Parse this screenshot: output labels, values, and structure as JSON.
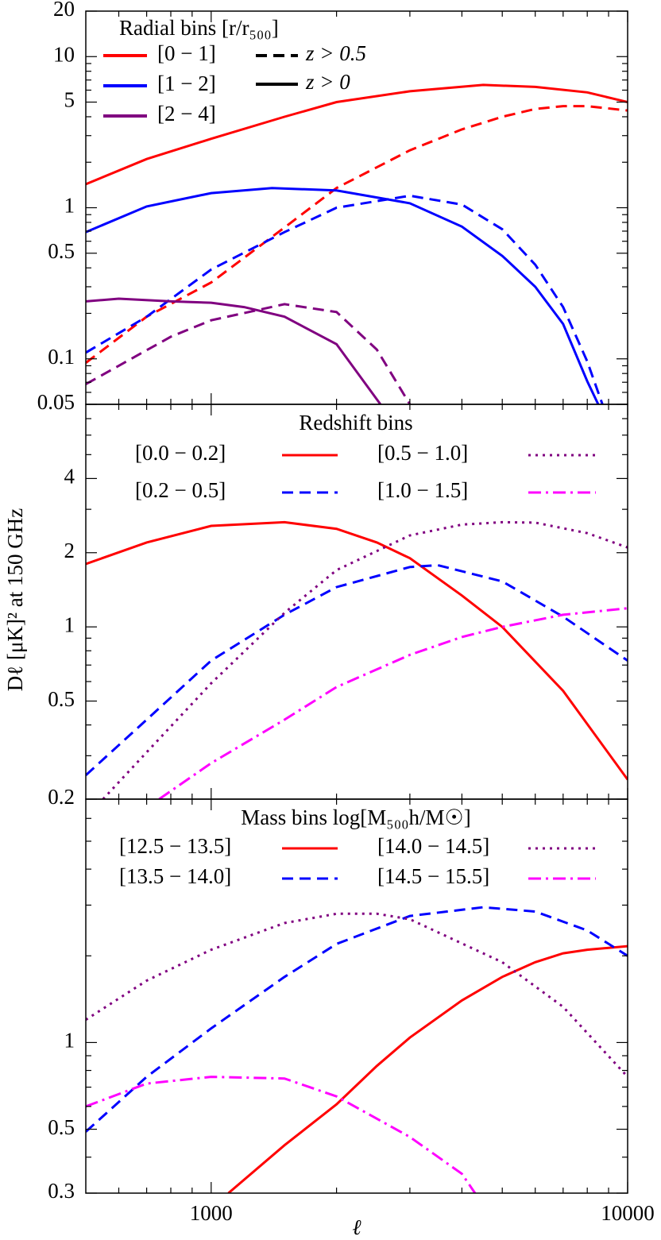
{
  "chart_data": [
    {
      "type": "line",
      "xlog": true,
      "ylog": true,
      "xlim": [
        500,
        10000
      ],
      "xticks": [
        1000,
        10000
      ],
      "xminor": [
        600,
        700,
        800,
        900,
        2000,
        3000,
        4000,
        5000,
        6000,
        7000,
        8000,
        9000
      ],
      "ylim": [
        0.05,
        20
      ],
      "yticks": [
        0.05,
        0.1,
        0.5,
        1,
        5,
        10,
        20
      ],
      "yminor": [
        0.06,
        0.07,
        0.08,
        0.09,
        0.2,
        0.3,
        0.4,
        0.6,
        0.7,
        0.8,
        0.9,
        2,
        3,
        4,
        6,
        7,
        8,
        9
      ],
      "legend": {
        "title": "Radial bins [r/r₅₀₀]",
        "entries": [
          {
            "label": "[0 − 1]",
            "color": "#ff0000"
          },
          {
            "label": "[1 − 2]",
            "color": "#0000ff"
          },
          {
            "label": "[2 − 4]",
            "color": "#800080"
          }
        ],
        "styles": [
          {
            "label": "z > 0.5",
            "dash": "dashed"
          },
          {
            "label": "z > 0",
            "dash": "solid"
          }
        ]
      },
      "series": [
        {
          "color": "#ff0000",
          "dash": "solid",
          "x": [
            500,
            700,
            1000,
            1500,
            2000,
            3000,
            4500,
            6000,
            8000,
            10000
          ],
          "values": [
            1.43,
            2.1,
            2.86,
            4.0,
            5.0,
            5.9,
            6.5,
            6.3,
            5.8,
            5.0
          ]
        },
        {
          "color": "#ff0000",
          "dash": "dashed",
          "x": [
            500,
            700,
            1000,
            1500,
            2000,
            3000,
            4000,
            5000,
            6000,
            7000,
            8000,
            10000
          ],
          "values": [
            0.094,
            0.19,
            0.32,
            0.74,
            1.35,
            2.4,
            3.3,
            4.0,
            4.5,
            4.7,
            4.7,
            4.4
          ]
        },
        {
          "color": "#0000ff",
          "dash": "solid",
          "x": [
            500,
            700,
            1000,
            1400,
            2000,
            3000,
            4000,
            5000,
            6000,
            7000,
            8000,
            8500
          ],
          "values": [
            0.69,
            1.02,
            1.25,
            1.35,
            1.3,
            1.07,
            0.75,
            0.48,
            0.3,
            0.17,
            0.071,
            0.05
          ]
        },
        {
          "color": "#0000ff",
          "dash": "dashed",
          "x": [
            500,
            700,
            1000,
            1500,
            2000,
            3000,
            4000,
            5000,
            6000,
            7000,
            8000,
            8700
          ],
          "values": [
            0.11,
            0.19,
            0.39,
            0.69,
            1.0,
            1.2,
            1.05,
            0.72,
            0.42,
            0.22,
            0.096,
            0.05
          ]
        },
        {
          "color": "#800080",
          "dash": "solid",
          "x": [
            500,
            600,
            800,
            1000,
            1200,
            1500,
            2000,
            2550
          ],
          "values": [
            0.24,
            0.25,
            0.24,
            0.235,
            0.22,
            0.19,
            0.125,
            0.05
          ]
        },
        {
          "color": "#800080",
          "dash": "dashed",
          "x": [
            500,
            800,
            1000,
            1500,
            2000,
            2500,
            3000
          ],
          "values": [
            0.068,
            0.14,
            0.18,
            0.23,
            0.204,
            0.115,
            0.05
          ]
        }
      ]
    },
    {
      "type": "line",
      "xlog": true,
      "ylog": true,
      "ylabel": "Dℓ [μK]² at 150 GHz",
      "xlim": [
        500,
        10000
      ],
      "xticks": [
        1000,
        10000
      ],
      "xminor": [
        600,
        700,
        800,
        900,
        2000,
        3000,
        4000,
        5000,
        6000,
        7000,
        8000,
        9000
      ],
      "ylim": [
        0.2,
        8
      ],
      "yticks": [
        0.2,
        0.5,
        1,
        2,
        4
      ],
      "yminor": [
        0.3,
        0.4,
        0.6,
        0.7,
        0.8,
        0.9,
        3,
        5,
        6,
        7
      ],
      "legend": {
        "title": "Redshift bins"
      },
      "series": [
        {
          "name": "[0.0 − 0.2]",
          "color": "#ff0000",
          "dash": "solid",
          "x": [
            500,
            700,
            1000,
            1500,
            2000,
            2500,
            3000,
            4000,
            5000,
            7000,
            10000
          ],
          "values": [
            1.8,
            2.2,
            2.57,
            2.66,
            2.5,
            2.2,
            1.9,
            1.34,
            1.0,
            0.55,
            0.24
          ]
        },
        {
          "name": "[0.2 − 0.5]",
          "color": "#0000ff",
          "dash": "dashed",
          "x": [
            500,
            700,
            1000,
            1500,
            2000,
            3000,
            3500,
            5000,
            7000,
            10000
          ],
          "values": [
            0.25,
            0.42,
            0.73,
            1.12,
            1.45,
            1.75,
            1.78,
            1.53,
            1.1,
            0.73
          ]
        },
        {
          "name": "[0.5 − 1.0]",
          "color": "#800080",
          "dash": "dotted",
          "x": [
            550,
            700,
            1000,
            1500,
            2000,
            3000,
            4000,
            5000,
            6000,
            8000,
            10000
          ],
          "values": [
            0.2,
            0.31,
            0.59,
            1.14,
            1.7,
            2.35,
            2.6,
            2.66,
            2.65,
            2.4,
            2.1
          ]
        },
        {
          "name": "[1.0 − 1.5]",
          "color": "#ff00ff",
          "dash": "dashdot",
          "x": [
            750,
            1000,
            1500,
            2000,
            3000,
            4000,
            5000,
            7000,
            10000
          ],
          "values": [
            0.2,
            0.28,
            0.42,
            0.57,
            0.77,
            0.91,
            1.0,
            1.12,
            1.19
          ]
        }
      ]
    },
    {
      "type": "line",
      "xlog": true,
      "ylog": true,
      "xlabel": "ℓ",
      "xticklabels": true,
      "xlim": [
        500,
        10000
      ],
      "xticks": [
        1000,
        10000
      ],
      "xminor": [
        600,
        700,
        800,
        900,
        2000,
        3000,
        4000,
        5000,
        6000,
        7000,
        8000,
        9000
      ],
      "ylim": [
        0.3,
        7
      ],
      "yticks": [
        0.3,
        0.5,
        1
      ],
      "yminor": [
        0.4,
        0.6,
        0.7,
        0.8,
        0.9,
        2,
        3,
        4,
        5,
        6
      ],
      "legend": {
        "title": "Mass bins log[M₅₀₀h/M☉]"
      },
      "series": [
        {
          "name": "[12.5 − 13.5]",
          "color": "#ff0000",
          "dash": "solid",
          "x": [
            1100,
            1500,
            2000,
            2500,
            3000,
            4000,
            5000,
            6000,
            7000,
            8000,
            10000
          ],
          "values": [
            0.3,
            0.44,
            0.61,
            0.83,
            1.04,
            1.4,
            1.69,
            1.9,
            2.04,
            2.1,
            2.16
          ]
        },
        {
          "name": "[13.5 − 14.0]",
          "color": "#0000ff",
          "dash": "dashed",
          "x": [
            500,
            700,
            1000,
            1500,
            2000,
            3000,
            4500,
            6000,
            8000,
            10000
          ],
          "values": [
            0.49,
            0.76,
            1.12,
            1.69,
            2.2,
            2.75,
            2.95,
            2.85,
            2.45,
            2.0
          ]
        },
        {
          "name": "[14.0 − 14.5]",
          "color": "#800080",
          "dash": "dotted",
          "x": [
            500,
            700,
            1000,
            1500,
            2000,
            2500,
            3000,
            5000,
            7000,
            10000
          ],
          "values": [
            1.2,
            1.64,
            2.1,
            2.6,
            2.8,
            2.8,
            2.68,
            1.9,
            1.33,
            0.76
          ]
        },
        {
          "name": "[14.5 − 15.5]",
          "color": "#ff00ff",
          "dash": "dashdot",
          "x": [
            500,
            700,
            1000,
            1500,
            2000,
            3000,
            4000,
            4300
          ],
          "values": [
            0.6,
            0.72,
            0.76,
            0.75,
            0.65,
            0.47,
            0.35,
            0.3
          ]
        }
      ]
    }
  ]
}
